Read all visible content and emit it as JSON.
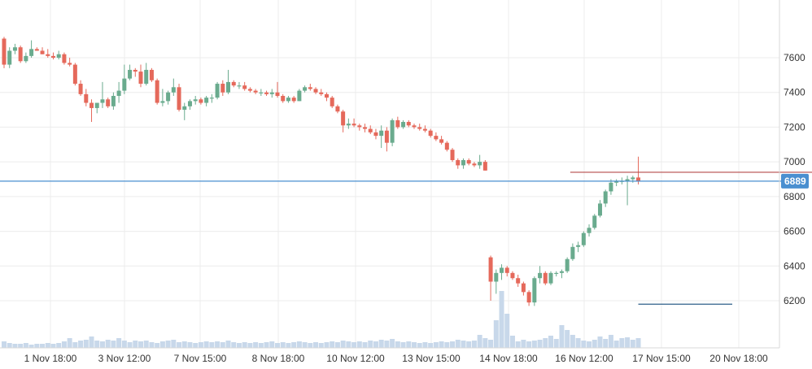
{
  "chart_data": {
    "type": "candlestick",
    "title": "",
    "xlabel": "",
    "ylabel": "",
    "ylim": [
      6000,
      7650
    ],
    "y_ticks": [
      6200,
      6400,
      6600,
      6800,
      7000,
      7200,
      7400,
      7600
    ],
    "x_ticks": [
      "1 Nov 18:00",
      "3 Nov 12:00",
      "7 Nov 15:00",
      "8 Nov 18:00",
      "10 Nov 12:00",
      "13 Nov 15:00",
      "14 Nov 18:00",
      "16 Nov 12:00",
      "17 Nov 15:00",
      "20 Nov 18:00"
    ],
    "grid": true,
    "colors": {
      "up": "#6aab8e",
      "down": "#e5695b",
      "volume": "#c8d8ea",
      "current_line": "#4a8fd0",
      "current_badge": "#4a8fd0",
      "resistance_line": "#b54a48",
      "support_line": "#2e5f8a",
      "grid": "#ececec"
    },
    "current_price": {
      "value": "6889",
      "level": 6889
    },
    "resistance_line": {
      "level": 6940,
      "from_candle": 104,
      "to_candle": 150
    },
    "support_line": {
      "level": 6180,
      "from_candle": 116,
      "to_candle": 150
    },
    "candles": [
      [
        7710,
        7720,
        7540,
        7560
      ],
      [
        7560,
        7660,
        7540,
        7640
      ],
      [
        7640,
        7680,
        7620,
        7660
      ],
      [
        7660,
        7670,
        7570,
        7580
      ],
      [
        7580,
        7630,
        7570,
        7610
      ],
      [
        7610,
        7700,
        7600,
        7650
      ],
      [
        7650,
        7660,
        7640,
        7640
      ],
      [
        7640,
        7660,
        7620,
        7620
      ],
      [
        7620,
        7650,
        7600,
        7610
      ],
      [
        7610,
        7630,
        7590,
        7600
      ],
      [
        7600,
        7640,
        7590,
        7620
      ],
      [
        7620,
        7630,
        7560,
        7570
      ],
      [
        7570,
        7600,
        7550,
        7560
      ],
      [
        7560,
        7570,
        7440,
        7450
      ],
      [
        7450,
        7470,
        7380,
        7390
      ],
      [
        7390,
        7420,
        7320,
        7340
      ],
      [
        7340,
        7360,
        7230,
        7310
      ],
      [
        7310,
        7340,
        7280,
        7340
      ],
      [
        7340,
        7460,
        7310,
        7360
      ],
      [
        7360,
        7370,
        7310,
        7320
      ],
      [
        7320,
        7400,
        7300,
        7380
      ],
      [
        7380,
        7460,
        7340,
        7410
      ],
      [
        7410,
        7560,
        7390,
        7480
      ],
      [
        7480,
        7560,
        7470,
        7530
      ],
      [
        7530,
        7540,
        7490,
        7520
      ],
      [
        7520,
        7560,
        7430,
        7450
      ],
      [
        7450,
        7570,
        7440,
        7530
      ],
      [
        7530,
        7540,
        7460,
        7470
      ],
      [
        7470,
        7480,
        7330,
        7340
      ],
      [
        7340,
        7420,
        7320,
        7350
      ],
      [
        7350,
        7410,
        7330,
        7400
      ],
      [
        7400,
        7480,
        7380,
        7430
      ],
      [
        7430,
        7450,
        7290,
        7300
      ],
      [
        7300,
        7340,
        7240,
        7320
      ],
      [
        7320,
        7360,
        7300,
        7350
      ],
      [
        7350,
        7380,
        7330,
        7360
      ],
      [
        7360,
        7370,
        7330,
        7340
      ],
      [
        7340,
        7380,
        7320,
        7370
      ],
      [
        7370,
        7390,
        7340,
        7370
      ],
      [
        7370,
        7460,
        7360,
        7450
      ],
      [
        7450,
        7470,
        7380,
        7400
      ],
      [
        7400,
        7530,
        7390,
        7460
      ],
      [
        7460,
        7470,
        7430,
        7440
      ],
      [
        7440,
        7460,
        7420,
        7440
      ],
      [
        7440,
        7460,
        7410,
        7420
      ],
      [
        7420,
        7430,
        7400,
        7410
      ],
      [
        7410,
        7420,
        7390,
        7400
      ],
      [
        7400,
        7420,
        7380,
        7400
      ],
      [
        7400,
        7410,
        7380,
        7390
      ],
      [
        7390,
        7420,
        7370,
        7400
      ],
      [
        7400,
        7460,
        7370,
        7380
      ],
      [
        7380,
        7390,
        7340,
        7350
      ],
      [
        7350,
        7380,
        7340,
        7370
      ],
      [
        7370,
        7380,
        7340,
        7350
      ],
      [
        7350,
        7420,
        7350,
        7410
      ],
      [
        7410,
        7440,
        7400,
        7430
      ],
      [
        7430,
        7450,
        7410,
        7420
      ],
      [
        7420,
        7430,
        7390,
        7400
      ],
      [
        7400,
        7420,
        7380,
        7390
      ],
      [
        7390,
        7400,
        7350,
        7370
      ],
      [
        7370,
        7380,
        7310,
        7320
      ],
      [
        7320,
        7330,
        7280,
        7290
      ],
      [
        7290,
        7300,
        7170,
        7210
      ],
      [
        7210,
        7250,
        7190,
        7220
      ],
      [
        7220,
        7250,
        7200,
        7210
      ],
      [
        7210,
        7220,
        7180,
        7200
      ],
      [
        7200,
        7220,
        7170,
        7190
      ],
      [
        7190,
        7210,
        7160,
        7170
      ],
      [
        7170,
        7190,
        7130,
        7150
      ],
      [
        7150,
        7210,
        7080,
        7180
      ],
      [
        7180,
        7200,
        7060,
        7110
      ],
      [
        7110,
        7250,
        7090,
        7240
      ],
      [
        7240,
        7260,
        7190,
        7200
      ],
      [
        7200,
        7240,
        7190,
        7230
      ],
      [
        7230,
        7240,
        7200,
        7210
      ],
      [
        7210,
        7220,
        7190,
        7200
      ],
      [
        7200,
        7220,
        7180,
        7190
      ],
      [
        7190,
        7210,
        7170,
        7180
      ],
      [
        7180,
        7190,
        7140,
        7150
      ],
      [
        7150,
        7170,
        7120,
        7130
      ],
      [
        7130,
        7150,
        7100,
        7110
      ],
      [
        7110,
        7120,
        7060,
        7070
      ],
      [
        7070,
        7080,
        7000,
        7010
      ],
      [
        7010,
        7020,
        6960,
        6980
      ],
      [
        6980,
        7020,
        6960,
        7010
      ],
      [
        7010,
        7020,
        6980,
        6990
      ],
      [
        6990,
        7000,
        6970,
        6980
      ],
      [
        6980,
        7040,
        6960,
        7000
      ],
      [
        7000,
        7010,
        6950,
        6950
      ],
      [
        6450,
        6460,
        6200,
        6310
      ],
      [
        6310,
        6380,
        6240,
        6360
      ],
      [
        6360,
        6410,
        6320,
        6390
      ],
      [
        6390,
        6400,
        6340,
        6360
      ],
      [
        6360,
        6370,
        6320,
        6330
      ],
      [
        6330,
        6350,
        6280,
        6300
      ],
      [
        6300,
        6310,
        6230,
        6250
      ],
      [
        6250,
        6260,
        6170,
        6190
      ],
      [
        6190,
        6340,
        6170,
        6330
      ],
      [
        6330,
        6400,
        6300,
        6360
      ],
      [
        6360,
        6370,
        6290,
        6300
      ],
      [
        6300,
        6370,
        6290,
        6360
      ],
      [
        6360,
        6370,
        6340,
        6360
      ],
      [
        6360,
        6380,
        6330,
        6370
      ],
      [
        6370,
        6450,
        6360,
        6440
      ],
      [
        6440,
        6530,
        6430,
        6510
      ],
      [
        6510,
        6540,
        6480,
        6520
      ],
      [
        6520,
        6600,
        6510,
        6590
      ],
      [
        6590,
        6640,
        6570,
        6620
      ],
      [
        6620,
        6700,
        6610,
        6690
      ],
      [
        6690,
        6780,
        6680,
        6760
      ],
      [
        6760,
        6840,
        6740,
        6830
      ],
      [
        6830,
        6900,
        6810,
        6880
      ],
      [
        6880,
        6900,
        6860,
        6890
      ],
      [
        6890,
        6910,
        6870,
        6890
      ],
      [
        6890,
        6920,
        6750,
        6900
      ],
      [
        6900,
        6920,
        6880,
        6910
      ],
      [
        6910,
        7030,
        6870,
        6889
      ]
    ],
    "volume": [
      8,
      6,
      5,
      5,
      6,
      4,
      5,
      5,
      6,
      5,
      6,
      8,
      12,
      7,
      9,
      10,
      14,
      9,
      8,
      10,
      9,
      12,
      9,
      7,
      9,
      8,
      9,
      7,
      6,
      8,
      9,
      10,
      7,
      8,
      7,
      6,
      7,
      8,
      7,
      8,
      7,
      9,
      7,
      6,
      7,
      6,
      7,
      6,
      7,
      8,
      6,
      7,
      6,
      7,
      8,
      7,
      6,
      7,
      6,
      7,
      8,
      7,
      9,
      8,
      7,
      8,
      7,
      9,
      8,
      10,
      9,
      11,
      8,
      7,
      8,
      7,
      6,
      7,
      6,
      7,
      8,
      7,
      8,
      10,
      9,
      8,
      9,
      16,
      12,
      10,
      34,
      70,
      42,
      15,
      8,
      10,
      8,
      9,
      10,
      12,
      15,
      11,
      28,
      22,
      16,
      12,
      9,
      8,
      10,
      14,
      11,
      16,
      9,
      12,
      13,
      10,
      12,
      9,
      15,
      11,
      14,
      10,
      9,
      12
    ]
  }
}
